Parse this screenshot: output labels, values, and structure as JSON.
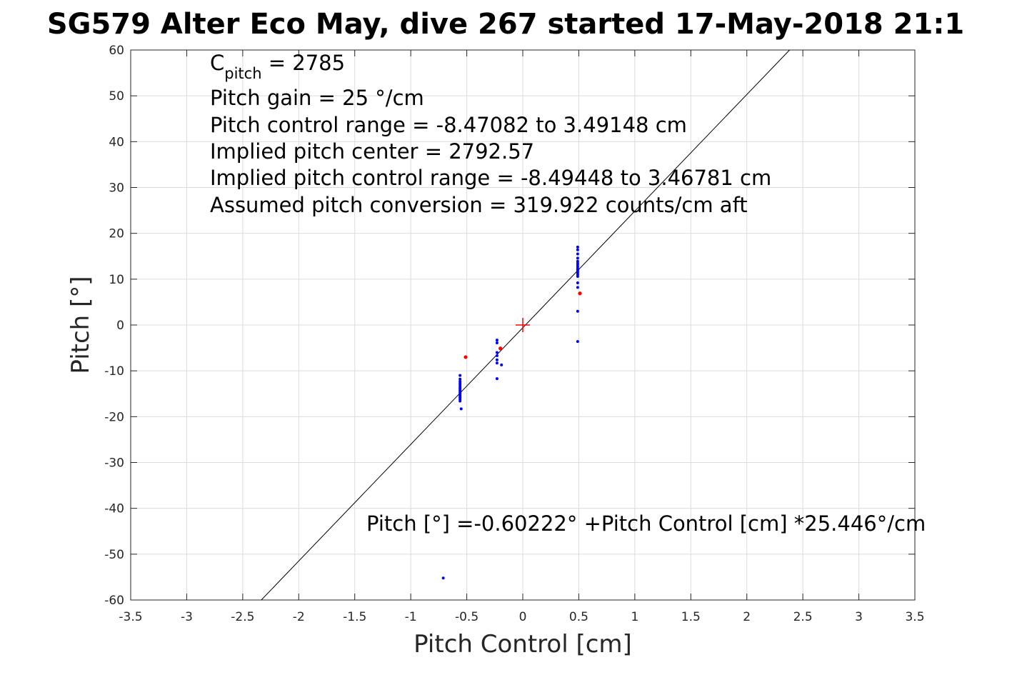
{
  "chart_data": {
    "type": "scatter",
    "title": "SG579 Alter Eco May, dive 267 started 17-May-2018 21:1",
    "xlabel": "Pitch Control [cm]",
    "ylabel": "Pitch [°]",
    "xlim": [
      -3.5,
      3.5
    ],
    "ylim": [
      -60,
      60
    ],
    "grid": true,
    "x_ticks": [
      -3.5,
      -3,
      -2.5,
      -2,
      -1.5,
      -1,
      -0.5,
      0,
      0.5,
      1,
      1.5,
      2,
      2.5,
      3,
      3.5
    ],
    "y_ticks": [
      60,
      50,
      40,
      30,
      20,
      10,
      0,
      -10,
      -20,
      -30,
      -40,
      -50,
      -60
    ],
    "x_tick_labels": [
      "-3.5",
      "-3",
      "-2.5",
      "-2",
      "-1.5",
      "-1",
      "-0.5",
      "0",
      "0.5",
      "1",
      "1.5",
      "2",
      "2.5",
      "3",
      "3.5"
    ],
    "y_tick_labels": [
      "60",
      "50",
      "40",
      "30",
      "20",
      "10",
      "0",
      "-10",
      "-20",
      "-30",
      "-40",
      "-50",
      "-60"
    ],
    "annotations": {
      "c_pitch_main": "C",
      "c_pitch_sub": "pitch",
      "c_pitch_value": " = 2785",
      "line2": "Pitch gain = 25 °/cm",
      "line3": "Pitch control range = -8.47082 to 3.49148 cm",
      "line4": "Implied pitch center = 2792.57",
      "line5": "Implied pitch control range = -8.49448 to 3.46781 cm",
      "line6": "Assumed pitch conversion = 319.922 counts/cm aft",
      "fit_equation": "Pitch [°] =-0.60222° +Pitch Control [cm] *25.446°/cm"
    },
    "fit_line": {
      "intercept": -0.60222,
      "slope": 25.446,
      "color": "#000000"
    },
    "center_marker": {
      "x": 0,
      "y": 0,
      "color": "#ff0000",
      "symbol": "plus"
    },
    "series": [
      {
        "color": "#0000ff",
        "points": [
          [
            -0.56,
            -11.0
          ],
          [
            -0.56,
            -11.8
          ],
          [
            -0.56,
            -12.3
          ],
          [
            -0.56,
            -12.7
          ],
          [
            -0.56,
            -13.1
          ],
          [
            -0.56,
            -13.5
          ],
          [
            -0.56,
            -13.8
          ],
          [
            -0.56,
            -14.1
          ],
          [
            -0.56,
            -14.4
          ],
          [
            -0.56,
            -14.7
          ],
          [
            -0.56,
            -15.0
          ],
          [
            -0.56,
            -15.3
          ],
          [
            -0.56,
            -15.6
          ],
          [
            -0.56,
            -15.9
          ],
          [
            -0.56,
            -16.2
          ],
          [
            -0.56,
            -16.6
          ],
          [
            -0.55,
            -18.3
          ],
          [
            -0.23,
            -3.3
          ],
          [
            -0.23,
            -3.9
          ],
          [
            -0.23,
            -6.0
          ],
          [
            -0.23,
            -6.7
          ],
          [
            -0.23,
            -7.6
          ],
          [
            -0.23,
            -8.3
          ],
          [
            -0.23,
            -11.7
          ],
          [
            -0.19,
            -8.7
          ],
          [
            0.49,
            17.0
          ],
          [
            0.49,
            16.4
          ],
          [
            0.49,
            15.5
          ],
          [
            0.49,
            14.6
          ],
          [
            0.49,
            13.9
          ],
          [
            0.49,
            13.5
          ],
          [
            0.49,
            13.1
          ],
          [
            0.49,
            12.7
          ],
          [
            0.49,
            12.3
          ],
          [
            0.49,
            12.0
          ],
          [
            0.49,
            11.7
          ],
          [
            0.49,
            11.4
          ],
          [
            0.49,
            11.0
          ],
          [
            0.49,
            10.6
          ],
          [
            0.49,
            9.2
          ],
          [
            0.49,
            8.2
          ],
          [
            0.49,
            3.0
          ],
          [
            0.49,
            -3.6
          ],
          [
            -0.71,
            -55.2
          ]
        ]
      },
      {
        "color": "#ff0000",
        "points": [
          [
            -0.51,
            -7.0
          ],
          [
            -0.2,
            -5.1
          ],
          [
            0.51,
            6.9
          ]
        ]
      }
    ]
  }
}
